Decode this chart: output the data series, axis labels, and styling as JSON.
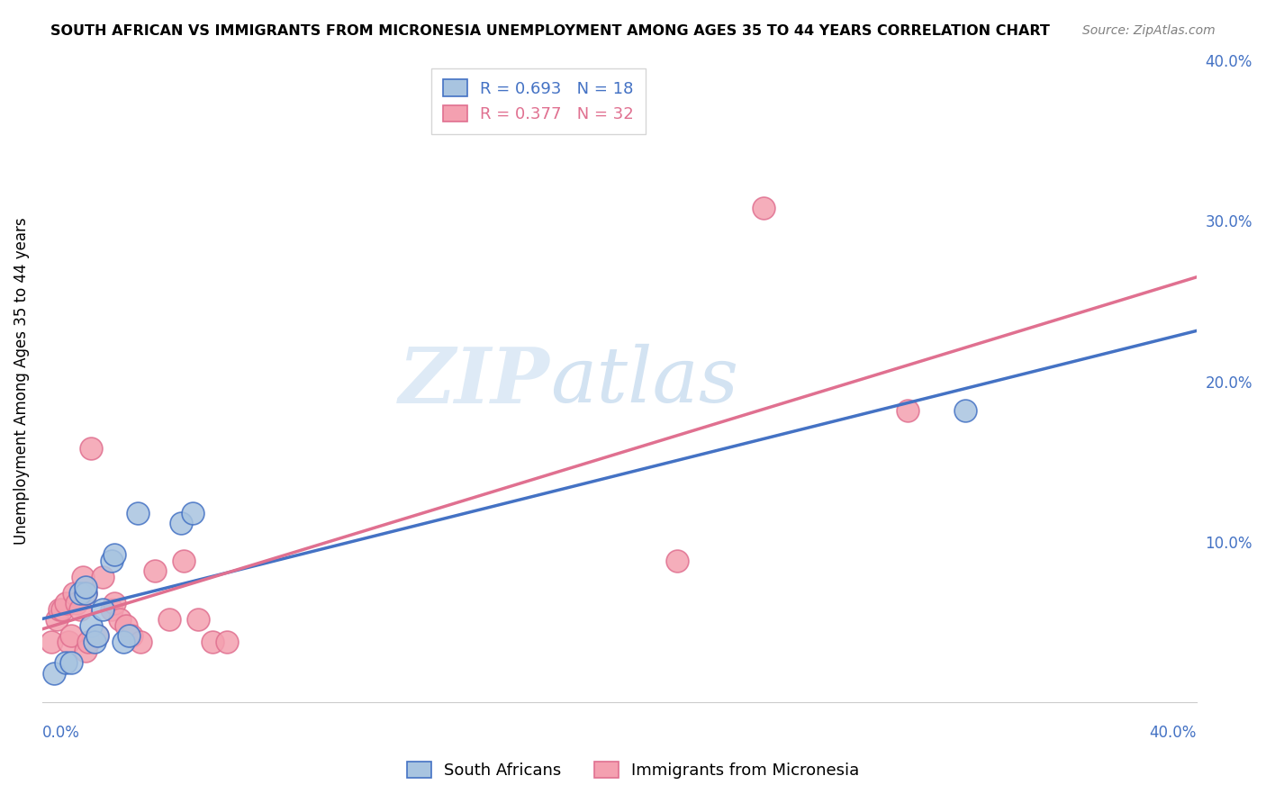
{
  "title": "SOUTH AFRICAN VS IMMIGRANTS FROM MICRONESIA UNEMPLOYMENT AMONG AGES 35 TO 44 YEARS CORRELATION CHART",
  "source": "Source: ZipAtlas.com",
  "ylabel": "Unemployment Among Ages 35 to 44 years",
  "xlim": [
    0,
    0.4
  ],
  "ylim": [
    0,
    0.4
  ],
  "blue_R": 0.693,
  "blue_N": 18,
  "pink_R": 0.377,
  "pink_N": 32,
  "blue_color": "#a8c4e0",
  "pink_color": "#f4a0b0",
  "blue_line_color": "#4472c4",
  "pink_line_color": "#e07090",
  "legend_label_blue": "South Africans",
  "legend_label_pink": "Immigrants from Micronesia",
  "watermark_zip": "ZIP",
  "watermark_atlas": "atlas",
  "blue_dots_x": [
    0.004,
    0.008,
    0.01,
    0.013,
    0.015,
    0.015,
    0.017,
    0.018,
    0.019,
    0.021,
    0.024,
    0.025,
    0.028,
    0.03,
    0.033,
    0.048,
    0.052,
    0.32
  ],
  "blue_dots_y": [
    0.018,
    0.025,
    0.025,
    0.068,
    0.068,
    0.072,
    0.048,
    0.038,
    0.042,
    0.058,
    0.088,
    0.092,
    0.038,
    0.042,
    0.118,
    0.112,
    0.118,
    0.182
  ],
  "pink_dots_x": [
    0.003,
    0.005,
    0.006,
    0.007,
    0.008,
    0.009,
    0.01,
    0.011,
    0.012,
    0.013,
    0.014,
    0.015,
    0.015,
    0.016,
    0.017,
    0.019,
    0.021,
    0.024,
    0.025,
    0.027,
    0.029,
    0.031,
    0.034,
    0.039,
    0.044,
    0.049,
    0.054,
    0.059,
    0.064,
    0.22,
    0.25,
    0.3
  ],
  "pink_dots_y": [
    0.038,
    0.052,
    0.058,
    0.058,
    0.062,
    0.038,
    0.042,
    0.068,
    0.062,
    0.058,
    0.078,
    0.068,
    0.032,
    0.038,
    0.158,
    0.042,
    0.078,
    0.058,
    0.062,
    0.052,
    0.048,
    0.042,
    0.038,
    0.082,
    0.052,
    0.088,
    0.052,
    0.038,
    0.038,
    0.088,
    0.308,
    0.182
  ]
}
